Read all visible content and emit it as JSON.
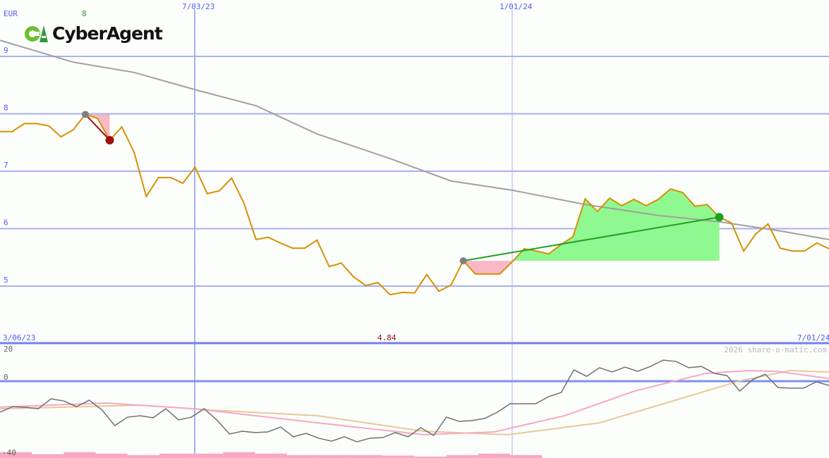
{
  "chart_data": {
    "type": "line",
    "currency": "EUR",
    "header_value": "8",
    "logo_text": "CyberAgent",
    "min_label": "4.84",
    "copyright": "2026 share-o-matic.com",
    "x_tick_labels_top": [
      "7/03/23",
      "1/01/24"
    ],
    "x_start_label": "3/06/23",
    "x_end_label": "7/01/24",
    "y_ticks": [
      "9",
      "8",
      "7",
      "6",
      "5"
    ],
    "ylim": [
      4.3,
      9.7
    ],
    "colors": {
      "price": "#d89000",
      "ma": "#a0a0a0",
      "grid": "#a8b0f0",
      "gain": "#90f890",
      "loss": "#f8b8c8",
      "trade_up": "#20a020",
      "trade_down": "#a01010",
      "label_blue": "#5060f0",
      "min_label": "#a01010"
    },
    "price": [
      7.69,
      7.69,
      7.83,
      7.83,
      7.79,
      7.6,
      7.72,
      7.99,
      7.92,
      7.54,
      7.77,
      7.33,
      6.56,
      6.89,
      6.89,
      6.79,
      7.07,
      6.61,
      6.66,
      6.88,
      6.45,
      5.81,
      5.85,
      5.75,
      5.66,
      5.66,
      5.8,
      5.34,
      5.4,
      5.16,
      5.01,
      5.06,
      4.85,
      4.89,
      4.88,
      5.2,
      4.91,
      5.02,
      5.44,
      5.21,
      5.21,
      5.21,
      5.42,
      5.65,
      5.61,
      5.56,
      5.72,
      5.86,
      6.52,
      6.3,
      6.53,
      6.4,
      6.51,
      6.4,
      6.51,
      6.69,
      6.63,
      6.39,
      6.42,
      6.2,
      6.1,
      5.61,
      5.91,
      6.08,
      5.66,
      5.61,
      5.61,
      5.75,
      5.65
    ],
    "moving_average": [
      [
        0,
        9.28
      ],
      [
        6,
        8.9
      ],
      [
        11,
        8.72
      ],
      [
        16,
        8.42
      ],
      [
        21,
        8.14
      ],
      [
        26,
        7.65
      ],
      [
        32,
        7.22
      ],
      [
        37,
        6.83
      ],
      [
        42,
        6.67
      ],
      [
        48,
        6.42
      ],
      [
        54,
        6.23
      ],
      [
        59,
        6.12
      ],
      [
        64,
        5.96
      ],
      [
        68,
        5.81
      ]
    ],
    "trades": [
      {
        "entry_index": 7,
        "entry": 7.99,
        "exit_index": 9,
        "exit": 7.54,
        "result": "loss"
      },
      {
        "entry_index": 38,
        "entry": 5.44,
        "exit_index": 59,
        "exit": 6.2,
        "result": "gain"
      }
    ],
    "oscillator": {
      "y_ticks": [
        "20",
        "0",
        "-40"
      ],
      "ylim": [
        -44,
        20
      ],
      "main": [
        -19.1,
        -15.7,
        -16.1,
        -17.0,
        -10.9,
        -12.2,
        -15.7,
        -11.7,
        -17.8,
        -27.4,
        -22.2,
        -21.3,
        -22.6,
        -17.0,
        -23.9,
        -22.2,
        -17.0,
        -23.9,
        -32.6,
        -30.9,
        -31.7,
        -31.3,
        -28.3,
        -34.3,
        -32.2,
        -35.2,
        -37.0,
        -34.3,
        -37.4,
        -35.2,
        -34.8,
        -31.7,
        -34.3,
        -28.7,
        -33.5,
        -22.2,
        -24.8,
        -24.3,
        -23.0,
        -19.1,
        -13.9,
        -13.9,
        -13.9,
        -9.6,
        -7.0,
        7.0,
        3.0,
        8.3,
        5.7,
        8.7,
        6.1,
        9.1,
        13.0,
        12.2,
        8.3,
        9.1,
        4.8,
        3.5,
        -6.1,
        0.9,
        4.3,
        -3.9,
        -4.3,
        -4.3,
        -0.4,
        -2.6
      ],
      "signal_pink": [
        [
          0,
          -16
        ],
        [
          0.128,
          -13.5
        ],
        [
          0.235,
          -17
        ],
        [
          0.383,
          -25.7
        ],
        [
          0.511,
          -33
        ],
        [
          0.596,
          -31.3
        ],
        [
          0.681,
          -21.3
        ],
        [
          0.766,
          -6
        ],
        [
          0.851,
          4.8
        ],
        [
          0.902,
          6.5
        ],
        [
          0.936,
          6.1
        ],
        [
          1,
          1.7
        ]
      ],
      "signal_tan": [
        [
          0,
          -17
        ],
        [
          0.17,
          -14.8
        ],
        [
          0.255,
          -17.8
        ],
        [
          0.383,
          -21.3
        ],
        [
          0.511,
          -30.9
        ],
        [
          0.613,
          -33
        ],
        [
          0.723,
          -25.7
        ],
        [
          0.809,
          -12.6
        ],
        [
          0.894,
          0.4
        ],
        [
          0.953,
          6.5
        ],
        [
          1,
          5.7
        ]
      ],
      "colors": {
        "main": "#707070",
        "pink": "#f8a8c0",
        "tan": "#e8c898"
      },
      "volume_bars": [
        0.9,
        0.5,
        0.9,
        0.6,
        0.3,
        0.6,
        0.6,
        0.9,
        0.6,
        0.3,
        0.3,
        0.3,
        0.2,
        0.0,
        0.3,
        0.6,
        0.3
      ]
    }
  }
}
